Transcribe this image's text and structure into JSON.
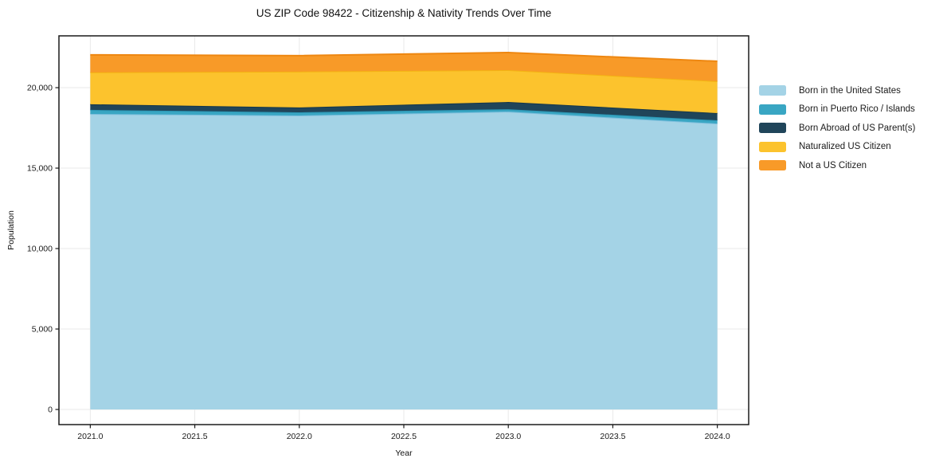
{
  "chart_data": {
    "type": "area",
    "stacked": true,
    "title": "US ZIP Code 98422 - Citizenship & Nativity Trends Over Time",
    "xlabel": "Year",
    "ylabel": "Population",
    "x": [
      2021,
      2022,
      2023,
      2024
    ],
    "series": [
      {
        "name": "Born in the United States",
        "color": "#A4D3E6",
        "edge_color": "#7FBFDD",
        "values": [
          18370,
          18270,
          18510,
          17770
        ]
      },
      {
        "name": "Born in Puerto Rico / Islands",
        "color": "#39A6C3",
        "edge_color": "#2B95B3",
        "values": [
          250,
          200,
          150,
          200
        ]
      },
      {
        "name": "Born Abroad of US Parent(s)",
        "color": "#20455A",
        "edge_color": "#16374A",
        "values": [
          350,
          300,
          450,
          450
        ]
      },
      {
        "name": "Naturalized US Citizen",
        "color": "#FCC32D",
        "edge_color": "#F3B312",
        "values": [
          1980,
          2230,
          1980,
          1980
        ]
      },
      {
        "name": "Not a US Citizen",
        "color": "#F89A28",
        "edge_color": "#EE8711",
        "values": [
          1090,
          990,
          1090,
          1240
        ]
      }
    ],
    "xlim": [
      2020.85,
      2024.15
    ],
    "ylim": [
      -940,
      23220
    ],
    "xticks": {
      "values": [
        2021.0,
        2021.5,
        2022.0,
        2022.5,
        2023.0,
        2023.5,
        2024.0
      ],
      "labels": [
        "2021.0",
        "2021.5",
        "2022.0",
        "2022.5",
        "2023.0",
        "2023.5",
        "2024.0"
      ]
    },
    "yticks": {
      "values": [
        0,
        5000,
        10000,
        15000,
        20000
      ],
      "labels": [
        "0",
        "5,000",
        "10,000",
        "15,000",
        "20,000"
      ]
    },
    "grid": true,
    "grid_color": "#e9e9e9",
    "spine_color": "#1a1a1a",
    "tick_label_color": "#1a1a1a",
    "legend_position": "right-outside"
  }
}
